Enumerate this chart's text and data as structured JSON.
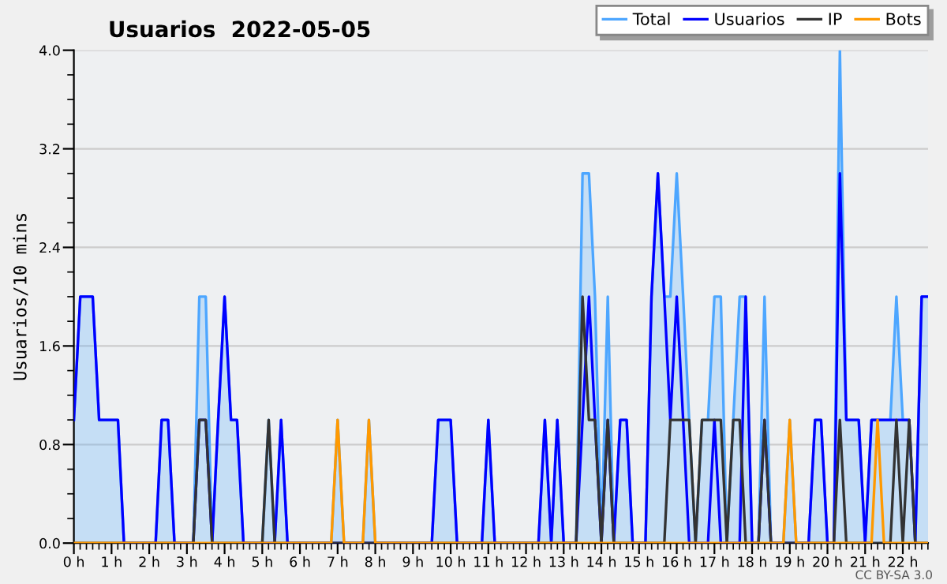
{
  "chart_data": {
    "type": "line",
    "title": "Usuarios  2022-05-05",
    "ylabel": "Usuarios/10 mins",
    "x": [
      0,
      0.17,
      0.33,
      0.5,
      0.67,
      0.83,
      1,
      1.17,
      1.33,
      1.5,
      1.67,
      1.83,
      2,
      2.17,
      2.33,
      2.5,
      2.67,
      2.83,
      3,
      3.17,
      3.33,
      3.5,
      3.67,
      3.83,
      4,
      4.17,
      4.33,
      4.5,
      4.67,
      4.83,
      5,
      5.17,
      5.33,
      5.5,
      5.67,
      5.83,
      6,
      6.17,
      6.33,
      6.5,
      6.67,
      6.83,
      7,
      7.17,
      7.33,
      7.5,
      7.67,
      7.83,
      8,
      8.17,
      8.33,
      8.5,
      8.67,
      8.83,
      9,
      9.17,
      9.33,
      9.5,
      9.67,
      9.83,
      10,
      10.17,
      10.33,
      10.5,
      10.67,
      10.83,
      11,
      11.17,
      11.33,
      11.5,
      11.67,
      11.83,
      12,
      12.17,
      12.33,
      12.5,
      12.67,
      12.83,
      13,
      13.17,
      13.33,
      13.5,
      13.67,
      13.83,
      14,
      14.17,
      14.33,
      14.5,
      14.67,
      14.83,
      15,
      15.17,
      15.33,
      15.5,
      15.67,
      15.83,
      16,
      16.17,
      16.33,
      16.5,
      16.67,
      16.83,
      17,
      17.17,
      17.33,
      17.5,
      17.67,
      17.83,
      18,
      18.17,
      18.33,
      18.5,
      18.67,
      18.83,
      19,
      19.17,
      19.33,
      19.5,
      19.67,
      19.83,
      20,
      20.17,
      20.33,
      20.5,
      20.67,
      20.83,
      21,
      21.17,
      21.33,
      21.5,
      21.67,
      21.83,
      22,
      22.17,
      22.33,
      22.5,
      22.67
    ],
    "series": [
      {
        "name": "Total",
        "type": "area",
        "color": "#4da6ff",
        "values": [
          1,
          2,
          2,
          2,
          1,
          1,
          1,
          1,
          0,
          0,
          0,
          0,
          0,
          0,
          1,
          1,
          0,
          0,
          0,
          0,
          2,
          2,
          0,
          1,
          2,
          1,
          1,
          0,
          0,
          0,
          0,
          1,
          0,
          1,
          0,
          0,
          0,
          0,
          0,
          0,
          0,
          0,
          1,
          0,
          0,
          0,
          0,
          1,
          0,
          0,
          0,
          0,
          0,
          0,
          0,
          0,
          0,
          0,
          1,
          1,
          1,
          0,
          0,
          0,
          0,
          0,
          1,
          0,
          0,
          0,
          0,
          0,
          0,
          0,
          0,
          1,
          0,
          1,
          0,
          0,
          0,
          3,
          3,
          2,
          0,
          2,
          0,
          1,
          1,
          0,
          0,
          0,
          2,
          3,
          2,
          2,
          3,
          2,
          1,
          0,
          1,
          1,
          2,
          2,
          0,
          1,
          2,
          2,
          0,
          0,
          2,
          0,
          0,
          0,
          1,
          0,
          0,
          0,
          1,
          1,
          0,
          0,
          4,
          1,
          1,
          1,
          0,
          1,
          1,
          1,
          1,
          2,
          1,
          1,
          0,
          2,
          2
        ]
      },
      {
        "name": "Usuarios",
        "color": "#0000ff",
        "values": [
          1,
          2,
          2,
          2,
          1,
          1,
          1,
          1,
          0,
          0,
          0,
          0,
          0,
          0,
          1,
          1,
          0,
          0,
          0,
          0,
          1,
          1,
          0,
          1,
          2,
          1,
          1,
          0,
          0,
          0,
          0,
          0,
          0,
          1,
          0,
          0,
          0,
          0,
          0,
          0,
          0,
          0,
          0,
          0,
          0,
          0,
          0,
          0,
          0,
          0,
          0,
          0,
          0,
          0,
          0,
          0,
          0,
          0,
          1,
          1,
          1,
          0,
          0,
          0,
          0,
          0,
          1,
          0,
          0,
          0,
          0,
          0,
          0,
          0,
          0,
          1,
          0,
          1,
          0,
          0,
          0,
          1,
          2,
          1,
          0,
          1,
          0,
          1,
          1,
          0,
          0,
          0,
          2,
          3,
          2,
          1,
          2,
          1,
          0,
          0,
          0,
          0,
          1,
          0,
          0,
          0,
          0,
          2,
          0,
          0,
          1,
          0,
          0,
          0,
          0,
          0,
          0,
          0,
          1,
          1,
          0,
          0,
          3,
          1,
          1,
          1,
          0,
          1,
          1,
          1,
          1,
          1,
          1,
          1,
          0,
          2,
          2
        ]
      },
      {
        "name": "IP",
        "color": "#333333",
        "values": [
          0,
          0,
          0,
          0,
          0,
          0,
          0,
          0,
          0,
          0,
          0,
          0,
          0,
          0,
          0,
          0,
          0,
          0,
          0,
          0,
          1,
          1,
          0,
          0,
          0,
          0,
          0,
          0,
          0,
          0,
          0,
          1,
          0,
          0,
          0,
          0,
          0,
          0,
          0,
          0,
          0,
          0,
          0,
          0,
          0,
          0,
          0,
          0,
          0,
          0,
          0,
          0,
          0,
          0,
          0,
          0,
          0,
          0,
          0,
          0,
          0,
          0,
          0,
          0,
          0,
          0,
          0,
          0,
          0,
          0,
          0,
          0,
          0,
          0,
          0,
          0,
          0,
          0,
          0,
          0,
          0,
          2,
          1,
          1,
          0,
          1,
          0,
          0,
          0,
          0,
          0,
          0,
          0,
          0,
          0,
          1,
          1,
          1,
          1,
          0,
          1,
          1,
          1,
          1,
          0,
          1,
          1,
          0,
          0,
          0,
          1,
          0,
          0,
          0,
          0,
          0,
          0,
          0,
          0,
          0,
          0,
          0,
          1,
          0,
          0,
          0,
          0,
          0,
          0,
          0,
          0,
          1,
          0,
          1,
          0,
          0,
          0
        ]
      },
      {
        "name": "Bots",
        "color": "#ff9900",
        "values": [
          0,
          0,
          0,
          0,
          0,
          0,
          0,
          0,
          0,
          0,
          0,
          0,
          0,
          0,
          0,
          0,
          0,
          0,
          0,
          0,
          0,
          0,
          0,
          0,
          0,
          0,
          0,
          0,
          0,
          0,
          0,
          0,
          0,
          0,
          0,
          0,
          0,
          0,
          0,
          0,
          0,
          0,
          1,
          0,
          0,
          0,
          0,
          1,
          0,
          0,
          0,
          0,
          0,
          0,
          0,
          0,
          0,
          0,
          0,
          0,
          0,
          0,
          0,
          0,
          0,
          0,
          0,
          0,
          0,
          0,
          0,
          0,
          0,
          0,
          0,
          0,
          0,
          0,
          0,
          0,
          0,
          0,
          0,
          0,
          0,
          0,
          0,
          0,
          0,
          0,
          0,
          0,
          0,
          0,
          0,
          0,
          0,
          0,
          0,
          0,
          0,
          0,
          0,
          0,
          0,
          0,
          0,
          0,
          0,
          0,
          0,
          0,
          0,
          0,
          1,
          0,
          0,
          0,
          0,
          0,
          0,
          0,
          0,
          0,
          0,
          0,
          0,
          0,
          1,
          0,
          0,
          0,
          0,
          0,
          0,
          0,
          0
        ]
      }
    ],
    "xlim": [
      0,
      22.67
    ],
    "xticks": [
      {
        "value": 0,
        "label": "0 h"
      },
      {
        "value": 1,
        "label": "1 h"
      },
      {
        "value": 2,
        "label": "2 h"
      },
      {
        "value": 3,
        "label": "3 h"
      },
      {
        "value": 4,
        "label": "4 h"
      },
      {
        "value": 5,
        "label": "5 h"
      },
      {
        "value": 6,
        "label": "6 h"
      },
      {
        "value": 7,
        "label": "7 h"
      },
      {
        "value": 8,
        "label": "8 h"
      },
      {
        "value": 9,
        "label": "9 h"
      },
      {
        "value": 10,
        "label": "10 h"
      },
      {
        "value": 11,
        "label": "11 h"
      },
      {
        "value": 12,
        "label": "12 h"
      },
      {
        "value": 13,
        "label": "13 h"
      },
      {
        "value": 14,
        "label": "14 h"
      },
      {
        "value": 15,
        "label": "15 h"
      },
      {
        "value": 16,
        "label": "16 h"
      },
      {
        "value": 17,
        "label": "17 h"
      },
      {
        "value": 18,
        "label": "18 h"
      },
      {
        "value": 19,
        "label": "19 h"
      },
      {
        "value": 20,
        "label": "20 h"
      },
      {
        "value": 21,
        "label": "21 h"
      },
      {
        "value": 22,
        "label": "22 h"
      }
    ],
    "ylim": [
      0,
      4
    ],
    "yticks": [
      {
        "value": 0,
        "label": "0.0"
      },
      {
        "value": 0.8,
        "label": "0.8"
      },
      {
        "value": 1.6,
        "label": "1.6"
      },
      {
        "value": 2.4,
        "label": "2.4"
      },
      {
        "value": 3.2,
        "label": "3.2"
      },
      {
        "value": 4,
        "label": "4.0"
      }
    ],
    "grid": "y",
    "legend": "top right",
    "marker": "none",
    "annotations": [
      "CC BY-SA 3.0"
    ]
  }
}
